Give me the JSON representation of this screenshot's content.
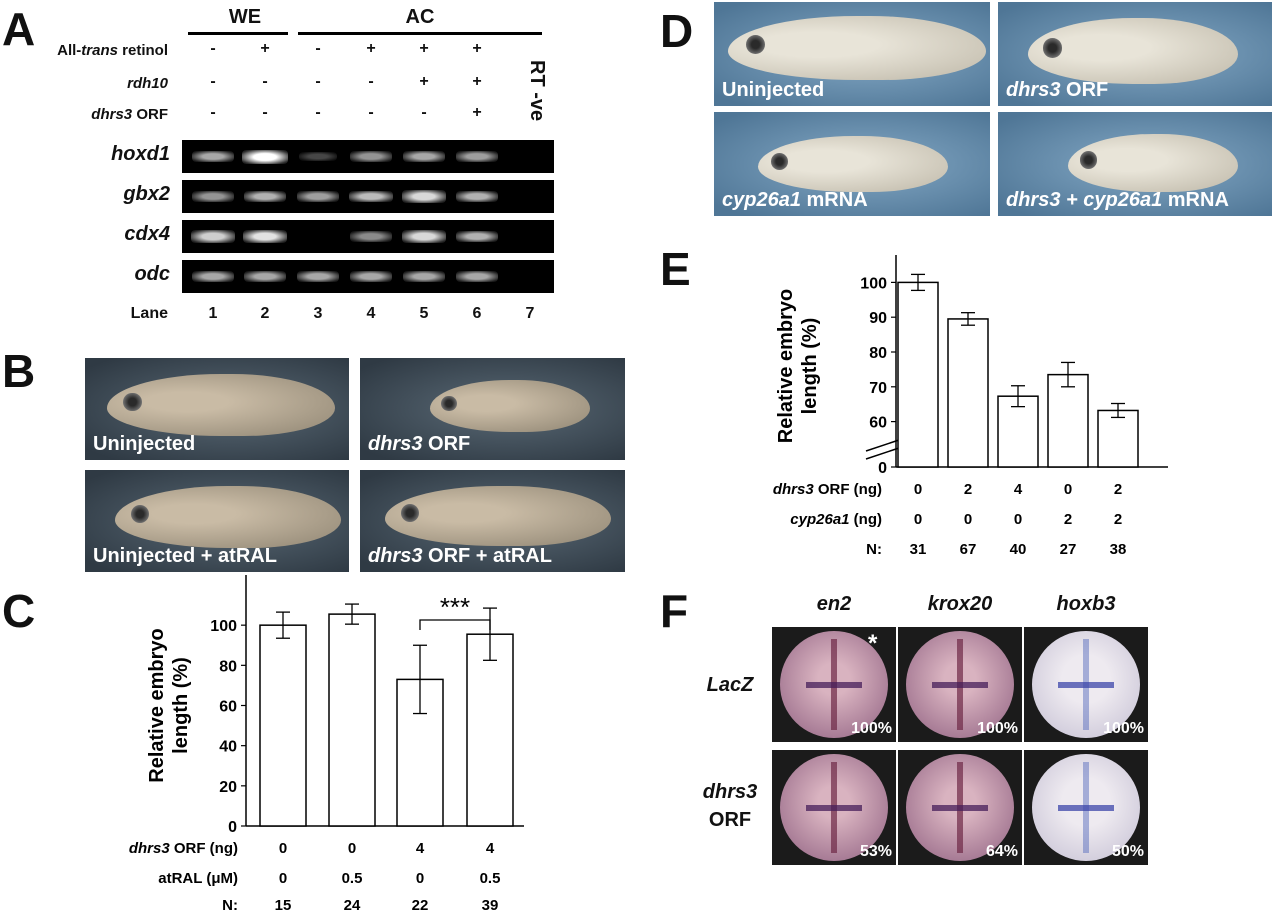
{
  "panels": {
    "A": "A",
    "B": "B",
    "C": "C",
    "D": "D",
    "E": "E",
    "F": "F"
  },
  "panelA": {
    "groups": [
      {
        "label": "WE"
      },
      {
        "label": "AC"
      }
    ],
    "conditions": [
      {
        "label_pre": "All-",
        "label_italic": "trans",
        "label_post": " retinol",
        "values": [
          "-",
          "+",
          "-",
          "+",
          "+",
          "+"
        ]
      },
      {
        "label_pre": "",
        "label_italic": "rdh10",
        "label_post": "",
        "values": [
          "-",
          "-",
          "-",
          "-",
          "+",
          "+"
        ]
      },
      {
        "label_pre": "",
        "label_italic": "dhrs3",
        "label_post": " ORF",
        "values": [
          "-",
          "-",
          "-",
          "-",
          "-",
          "+"
        ]
      }
    ],
    "rt_label": "RT -ve",
    "genes": [
      {
        "name": "hoxd1",
        "intensity": [
          0.55,
          1.0,
          0.05,
          0.45,
          0.55,
          0.5,
          0
        ]
      },
      {
        "name": "gbx2",
        "intensity": [
          0.45,
          0.6,
          0.5,
          0.65,
          0.8,
          0.6,
          0
        ]
      },
      {
        "name": "cdx4",
        "intensity": [
          0.75,
          0.85,
          0.0,
          0.4,
          0.8,
          0.6,
          0
        ]
      },
      {
        "name": "odc",
        "intensity": [
          0.55,
          0.55,
          0.55,
          0.55,
          0.55,
          0.55,
          0
        ]
      }
    ],
    "lane_label": "Lane",
    "lanes": [
      "1",
      "2",
      "3",
      "4",
      "5",
      "6",
      "7"
    ]
  },
  "panelB": {
    "images": [
      {
        "caption_italic": "",
        "caption": "Uninjected"
      },
      {
        "caption_italic": "dhrs3",
        "caption": " ORF"
      },
      {
        "caption_italic": "",
        "caption": "Uninjected + atRAL"
      },
      {
        "caption_italic": "dhrs3",
        "caption": " ORF + atRAL"
      }
    ]
  },
  "panelD": {
    "images": [
      {
        "caption_italic": "",
        "caption": "Uninjected"
      },
      {
        "caption_italic": "dhrs3",
        "caption": " ORF"
      },
      {
        "caption_italic": "cyp26a1",
        "caption": " mRNA"
      },
      {
        "caption_italic": "dhrs3 + cyp26a1",
        "caption": " mRNA"
      }
    ]
  },
  "chart_data": [
    {
      "panel": "C",
      "type": "bar",
      "ylabel": "Relative embryo length (%)",
      "ylabel_lines": [
        "Relative embryo",
        "length (%)"
      ],
      "ylim": [
        0,
        120
      ],
      "yticks": [
        0,
        20,
        40,
        60,
        80,
        100
      ],
      "values": [
        100,
        105.5,
        73,
        95.5
      ],
      "errors": [
        6.5,
        5,
        17,
        13
      ],
      "rows": [
        {
          "label_italic": "dhrs3",
          "label": " ORF (ng)",
          "values": [
            "0",
            "0",
            "4",
            "4"
          ]
        },
        {
          "label_italic": "",
          "label": "atRAL (μM)",
          "values": [
            "0",
            "0.5",
            "0",
            "0.5"
          ]
        },
        {
          "label_italic": "",
          "label": "N:",
          "values": [
            "15",
            "24",
            "22",
            "39"
          ]
        }
      ],
      "annotation": {
        "text": "***",
        "between": [
          2,
          3
        ]
      }
    },
    {
      "panel": "E",
      "type": "bar",
      "ylabel": "Relative embryo length (%)",
      "ylabel_lines": [
        "Relative embryo",
        "length (%)"
      ],
      "ylim": [
        55,
        105
      ],
      "axis_break": true,
      "yticks": [
        0,
        60,
        70,
        80,
        90,
        100
      ],
      "values": [
        100,
        89.5,
        67.3,
        73.5,
        63.2
      ],
      "errors": [
        2.3,
        1.8,
        3,
        3.5,
        2
      ],
      "rows": [
        {
          "label_italic": "dhrs3",
          "label": " ORF (ng)",
          "values": [
            "0",
            "2",
            "4",
            "0",
            "2"
          ]
        },
        {
          "label_italic": "cyp26a1",
          "label": " (ng)",
          "values": [
            "0",
            "0",
            "0",
            "2",
            "2"
          ]
        },
        {
          "label_italic": "",
          "label": "N:",
          "values": [
            "31",
            "67",
            "40",
            "27",
            "38"
          ]
        }
      ]
    }
  ],
  "panelF": {
    "columns": [
      "en2",
      "krox20",
      "hoxb3"
    ],
    "rows": [
      {
        "label_lines": [
          "LacZ"
        ],
        "percents": [
          "100%",
          "100%",
          "100%"
        ]
      },
      {
        "label_lines": [
          "dhrs3",
          "ORF"
        ],
        "percents": [
          "53%",
          "64%",
          "50%"
        ]
      }
    ],
    "asterisk": "*"
  },
  "colors": {
    "gel": "#000000",
    "photo_bg_B": "#3d4a55",
    "photo_bg_D": "#5d84a3",
    "ish_bg": "#1b1b1b"
  }
}
